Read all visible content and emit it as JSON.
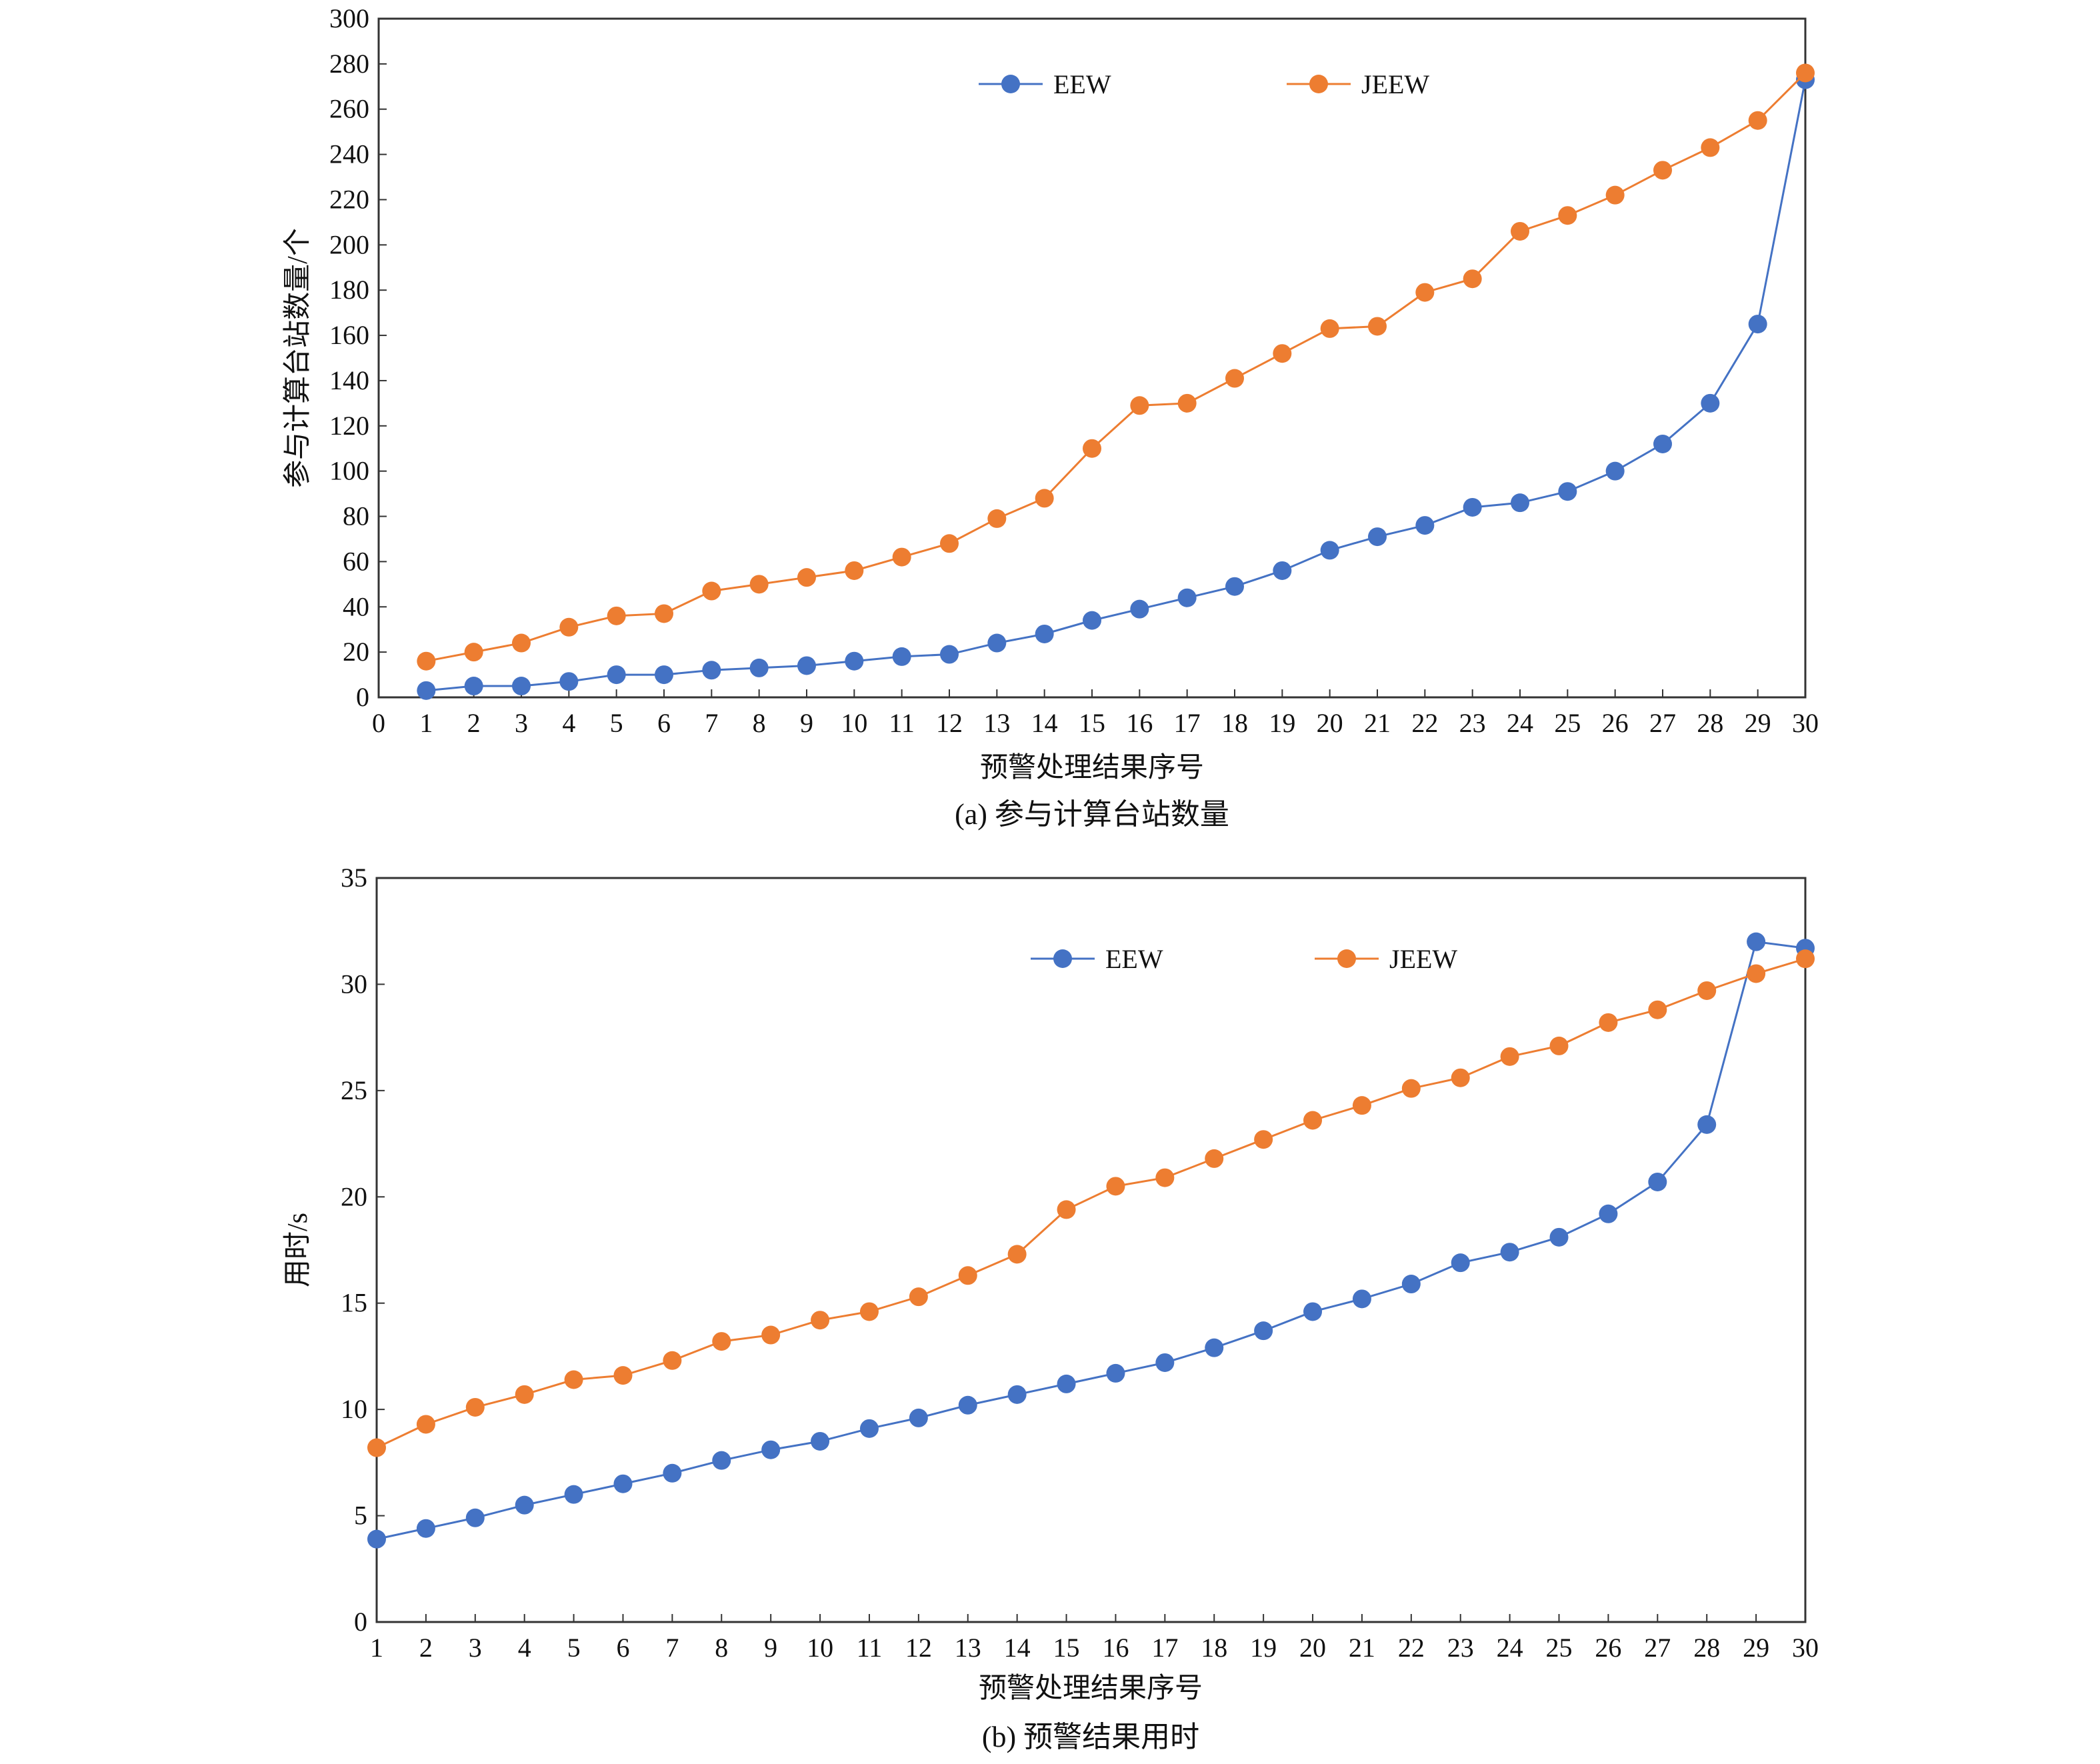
{
  "chart_data": [
    {
      "type": "line",
      "caption": "(a) 参与计算台站数量",
      "xlabel": "预警处理结果序号",
      "ylabel": "参与计算台站数量/个",
      "xlim": [
        0,
        30
      ],
      "ylim": [
        0,
        300
      ],
      "x_ticks": [
        0,
        1,
        2,
        3,
        4,
        5,
        6,
        7,
        8,
        9,
        10,
        11,
        12,
        13,
        14,
        15,
        16,
        17,
        18,
        19,
        20,
        21,
        22,
        23,
        24,
        25,
        26,
        27,
        28,
        29,
        30
      ],
      "y_ticks": [
        0,
        20,
        40,
        60,
        80,
        100,
        120,
        140,
        160,
        180,
        200,
        220,
        240,
        260,
        280,
        300
      ],
      "x": [
        1,
        2,
        3,
        4,
        5,
        6,
        7,
        8,
        9,
        10,
        11,
        12,
        13,
        14,
        15,
        16,
        17,
        18,
        19,
        20,
        21,
        22,
        23,
        24,
        25,
        26,
        27,
        28,
        29,
        30
      ],
      "grid": false,
      "legend_position": "top",
      "series": [
        {
          "name": "EEW",
          "color": "#4472C4",
          "values": [
            3,
            5,
            5,
            7,
            10,
            10,
            12,
            13,
            14,
            16,
            18,
            19,
            24,
            28,
            34,
            39,
            44,
            49,
            56,
            65,
            71,
            76,
            84,
            86,
            91,
            100,
            112,
            130,
            165,
            273
          ]
        },
        {
          "name": "JEEW",
          "color": "#ED7D31",
          "values": [
            16,
            20,
            24,
            31,
            36,
            37,
            47,
            50,
            53,
            56,
            62,
            68,
            79,
            88,
            110,
            129,
            130,
            141,
            152,
            163,
            164,
            179,
            185,
            206,
            213,
            222,
            233,
            243,
            255,
            276
          ]
        }
      ]
    },
    {
      "type": "line",
      "caption": "(b) 预警结果用时",
      "xlabel": "预警处理结果序号",
      "ylabel": "用时/s",
      "xlim": [
        1,
        30
      ],
      "ylim": [
        0,
        35
      ],
      "x_ticks": [
        1,
        2,
        3,
        4,
        5,
        6,
        7,
        8,
        9,
        10,
        11,
        12,
        13,
        14,
        15,
        16,
        17,
        18,
        19,
        20,
        21,
        22,
        23,
        24,
        25,
        26,
        27,
        28,
        29,
        30
      ],
      "y_ticks": [
        0,
        5,
        10,
        15,
        20,
        25,
        30,
        35
      ],
      "x": [
        1,
        2,
        3,
        4,
        5,
        6,
        7,
        8,
        9,
        10,
        11,
        12,
        13,
        14,
        15,
        16,
        17,
        18,
        19,
        20,
        21,
        22,
        23,
        24,
        25,
        26,
        27,
        28,
        29,
        30
      ],
      "grid": false,
      "legend_position": "top",
      "series": [
        {
          "name": "EEW",
          "color": "#4472C4",
          "values": [
            3.9,
            4.4,
            4.9,
            5.5,
            6.0,
            6.5,
            7.0,
            7.6,
            8.1,
            8.5,
            9.1,
            9.6,
            10.2,
            10.7,
            11.2,
            11.7,
            12.2,
            12.9,
            13.7,
            14.6,
            15.2,
            15.9,
            16.9,
            17.4,
            18.1,
            19.2,
            20.7,
            23.4,
            32.0,
            31.7
          ]
        },
        {
          "name": "JEEW",
          "color": "#ED7D31",
          "values": [
            8.2,
            9.3,
            10.1,
            10.7,
            11.4,
            11.6,
            12.3,
            13.2,
            13.5,
            14.2,
            14.6,
            15.3,
            16.3,
            17.3,
            19.4,
            20.5,
            20.9,
            21.8,
            22.7,
            23.6,
            24.3,
            25.1,
            25.6,
            26.6,
            27.1,
            28.2,
            28.8,
            29.7,
            30.5,
            31.2
          ]
        }
      ]
    }
  ]
}
